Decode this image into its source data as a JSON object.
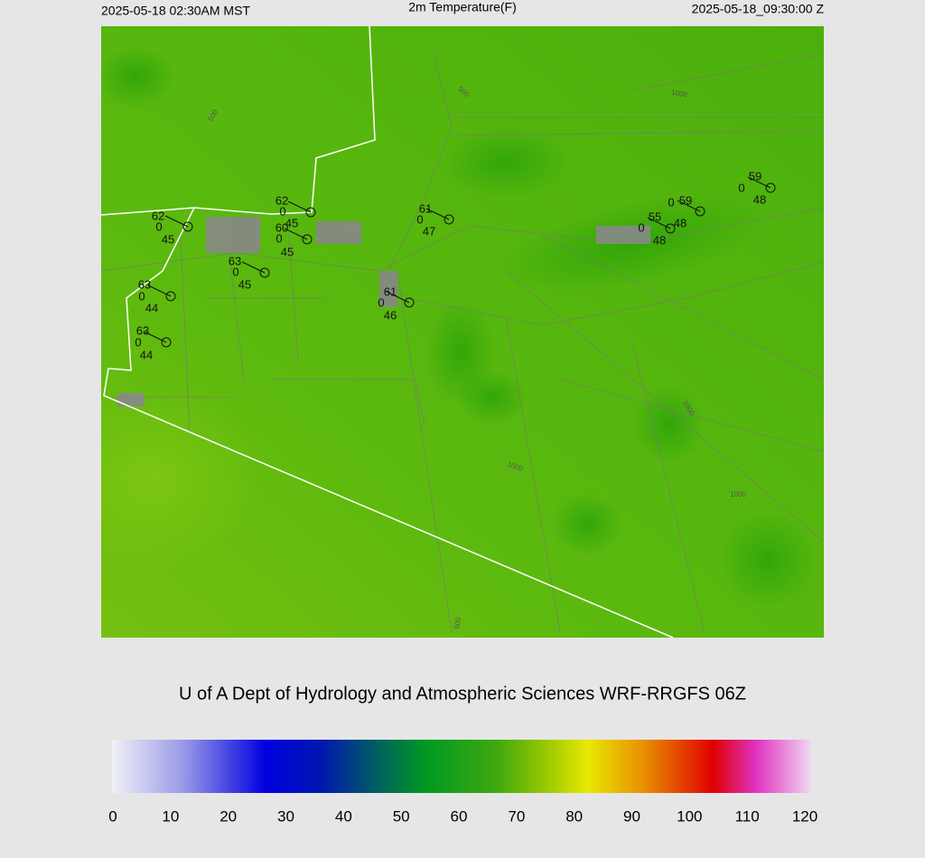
{
  "header": {
    "left": "2025-05-18 02:30AM MST",
    "title": "2m Temperature(F)",
    "right": "2025-05-18_09:30:00 Z"
  },
  "stations": [
    {
      "temp": 62,
      "wind": 0,
      "dew": 45
    },
    {
      "temp": 62,
      "wind": 0,
      "dew": 45
    },
    {
      "temp": 60,
      "wind": 0,
      "dew": 45
    },
    {
      "temp": 63,
      "wind": 0,
      "dew": 45
    },
    {
      "temp": 63,
      "wind": 0,
      "dew": 44
    },
    {
      "temp": 63,
      "wind": 0,
      "dew": 44
    },
    {
      "temp": 61,
      "wind": 0,
      "dew": 47
    },
    {
      "temp": 61,
      "wind": 0,
      "dew": 46
    },
    {
      "temp": 55,
      "wind": 0,
      "dew": 48
    },
    {
      "temp": 59,
      "wind": 0,
      "dew": 48
    },
    {
      "temp": 59,
      "wind": 0,
      "dew": 48
    }
  ],
  "contour_labels": [
    "500",
    "1000",
    "500",
    "1000",
    "1000",
    "1000",
    "500"
  ],
  "credit": "U of A Dept of Hydrology and Atmospheric Sciences WRF-RRGFS 06Z",
  "colorbar": {
    "ticks": [
      0,
      10,
      20,
      30,
      40,
      50,
      60,
      70,
      80,
      90,
      100,
      110,
      120
    ]
  }
}
